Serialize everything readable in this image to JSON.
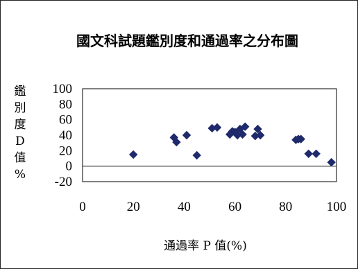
{
  "chart_data": {
    "type": "scatter",
    "title": "國文科試題鑑別度和通過率之分布圖",
    "xlabel": "通過率 P 值(%)",
    "ylabel": "鑑別度D值%",
    "xlim": [
      0,
      100
    ],
    "ylim": [
      -20,
      100
    ],
    "xticks": [
      "0",
      "20",
      "40",
      "60",
      "80",
      "100"
    ],
    "yticks": [
      "100",
      "80",
      "60",
      "40",
      "20",
      "0",
      "-20"
    ],
    "grid": false,
    "legend": false,
    "marker": "diamond",
    "color": "#1f2a6b",
    "points": [
      {
        "x": 20,
        "y": 15
      },
      {
        "x": 36,
        "y": 37
      },
      {
        "x": 37,
        "y": 31
      },
      {
        "x": 41,
        "y": 40
      },
      {
        "x": 45,
        "y": 14
      },
      {
        "x": 51,
        "y": 49
      },
      {
        "x": 53,
        "y": 50
      },
      {
        "x": 58,
        "y": 41
      },
      {
        "x": 59,
        "y": 45
      },
      {
        "x": 60,
        "y": 44
      },
      {
        "x": 61,
        "y": 40
      },
      {
        "x": 62,
        "y": 48
      },
      {
        "x": 63,
        "y": 41
      },
      {
        "x": 64,
        "y": 51
      },
      {
        "x": 68,
        "y": 39
      },
      {
        "x": 69,
        "y": 48
      },
      {
        "x": 70,
        "y": 40
      },
      {
        "x": 84,
        "y": 34
      },
      {
        "x": 85,
        "y": 35
      },
      {
        "x": 86,
        "y": 35
      },
      {
        "x": 89,
        "y": 16
      },
      {
        "x": 92,
        "y": 16
      },
      {
        "x": 98,
        "y": 5
      }
    ]
  }
}
